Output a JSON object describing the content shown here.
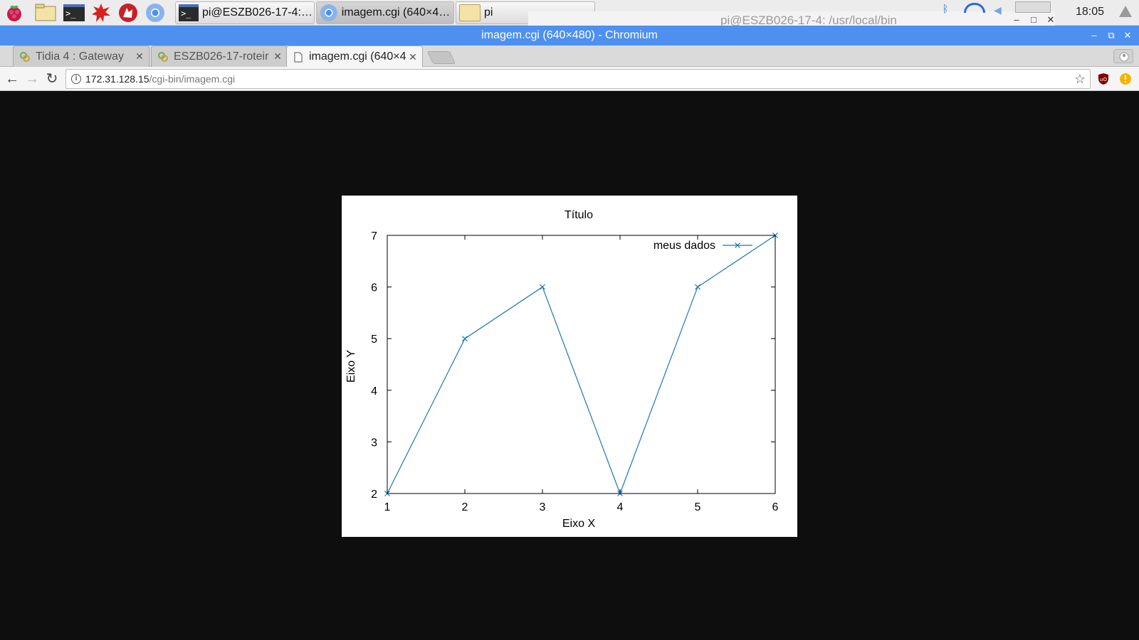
{
  "taskbar": {
    "tasks": [
      {
        "label": "pi@ESZB026-17-4: /u..."
      },
      {
        "label": "imagem.cgi (640×48..."
      },
      {
        "label": "pi"
      }
    ],
    "clock": "18:05",
    "background_terminal_title": "pi@ESZB026-17-4: /usr/local/bin",
    "launcher_icons": [
      "raspberry-menu-icon",
      "file-manager-icon",
      "terminal-icon",
      "mathematica-icon",
      "wolfram-icon",
      "chromium-icon"
    ]
  },
  "window": {
    "title": "imagem.cgi (640×480) - Chromium",
    "controls": {
      "minimize": "–",
      "maximize": "⧉",
      "close": "✕"
    }
  },
  "tabs": [
    {
      "title": "Tidia 4 : Gateway",
      "close": "✕",
      "active": false
    },
    {
      "title": "ESZB026-17-roteir",
      "close": "✕",
      "active": false
    },
    {
      "title": "imagem.cgi (640×4",
      "close": "✕",
      "active": true
    }
  ],
  "toolbar": {
    "back": "←",
    "forward": "→",
    "reload": "↻",
    "url_host": "172.31.128.15",
    "url_path": "/cgi-bin/imagem.cgi",
    "star": "☆"
  },
  "chart_data": {
    "type": "line",
    "title": "Título",
    "xlabel": "Eixo X",
    "ylabel": "Eixo Y",
    "x": [
      1,
      2,
      3,
      4,
      5,
      6
    ],
    "series": [
      {
        "name": "meus dados",
        "values": [
          2,
          5,
          6,
          2,
          6,
          7
        ],
        "marker": "x",
        "color": "#1f77b4"
      }
    ],
    "xlim": [
      1,
      6
    ],
    "ylim": [
      2,
      7
    ],
    "xticks": [
      1,
      2,
      3,
      4,
      5,
      6
    ],
    "yticks": [
      2,
      3,
      4,
      5,
      6,
      7
    ],
    "legend": "top-right",
    "grid": false
  }
}
